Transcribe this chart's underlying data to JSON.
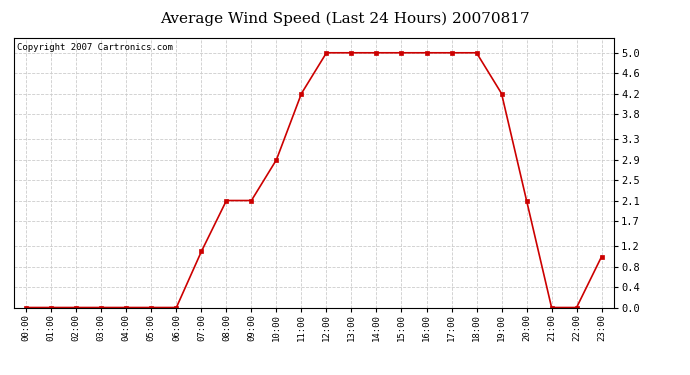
{
  "title": "Average Wind Speed (Last 24 Hours) 20070817",
  "copyright_text": "Copyright 2007 Cartronics.com",
  "hours": [
    "00:00",
    "01:00",
    "02:00",
    "03:00",
    "04:00",
    "05:00",
    "06:00",
    "07:00",
    "08:00",
    "09:00",
    "10:00",
    "11:00",
    "12:00",
    "13:00",
    "14:00",
    "15:00",
    "16:00",
    "17:00",
    "18:00",
    "19:00",
    "20:00",
    "21:00",
    "22:00",
    "23:00"
  ],
  "values": [
    0.0,
    0.0,
    0.0,
    0.0,
    0.0,
    0.0,
    0.0,
    1.1,
    2.1,
    2.1,
    2.9,
    4.2,
    5.0,
    5.0,
    5.0,
    5.0,
    5.0,
    5.0,
    5.0,
    4.2,
    2.1,
    0.0,
    0.0,
    1.0
  ],
  "line_color": "#cc0000",
  "marker": "s",
  "marker_size": 3,
  "ylim": [
    0.0,
    5.3
  ],
  "yticks": [
    0.0,
    0.4,
    0.8,
    1.2,
    1.7,
    2.1,
    2.5,
    2.9,
    3.3,
    3.8,
    4.2,
    4.6,
    5.0
  ],
  "bg_color": "#ffffff",
  "plot_bg_color": "#ffffff",
  "grid_color": "#cccccc",
  "title_fontsize": 11,
  "copyright_fontsize": 6.5
}
